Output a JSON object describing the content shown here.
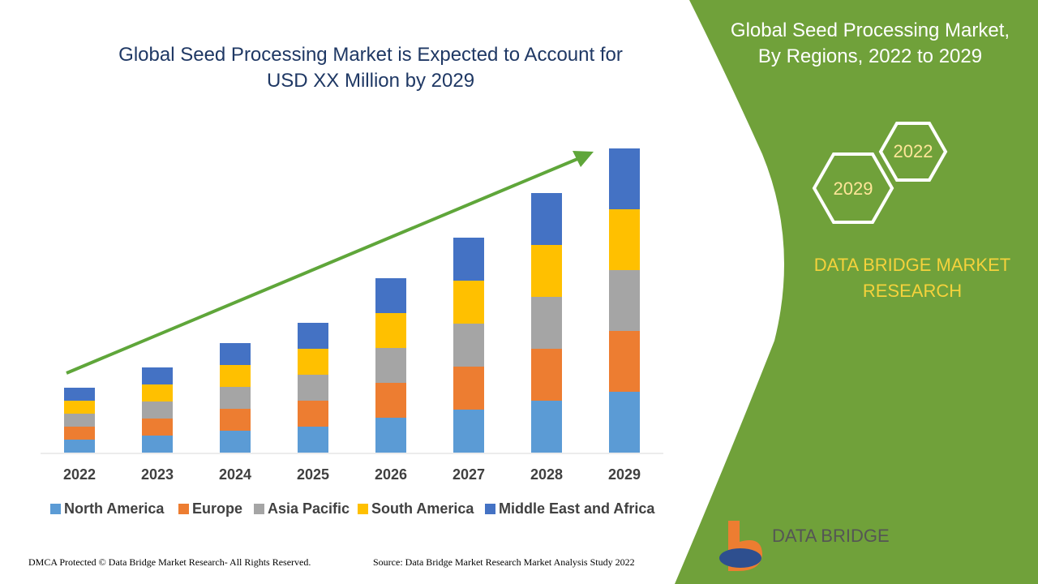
{
  "chart_data": {
    "type": "bar",
    "stacked": true,
    "title": "Global Seed Processing Market is Expected to Account for USD XX Million by 2029",
    "categories": [
      "2022",
      "2023",
      "2024",
      "2025",
      "2026",
      "2027",
      "2028",
      "2029"
    ],
    "series": [
      {
        "name": "North America",
        "color": "#5b9bd5",
        "values": [
          16,
          21,
          27,
          32,
          43,
          53,
          64,
          75
        ]
      },
      {
        "name": "Europe",
        "color": "#ed7d31",
        "values": [
          16,
          21,
          27,
          32,
          43,
          53,
          64,
          75
        ]
      },
      {
        "name": "Asia Pacific",
        "color": "#a5a5a5",
        "values": [
          16,
          21,
          27,
          32,
          43,
          53,
          64,
          75
        ]
      },
      {
        "name": "South America",
        "color": "#ffc000",
        "values": [
          16,
          21,
          27,
          32,
          43,
          53,
          64,
          75
        ]
      },
      {
        "name": "Middle East and Africa",
        "color": "#4472c4",
        "values": [
          16,
          21,
          27,
          32,
          43,
          53,
          64,
          75
        ]
      }
    ],
    "ylim": [
      0,
      400
    ],
    "legend": "bottom"
  },
  "panel": {
    "title": "Global Seed Processing Market, By Regions, 2022 to 2029",
    "hexagons": [
      "2022",
      "2029"
    ],
    "brand": "DATA BRIDGE MARKET RESEARCH"
  },
  "logo": {
    "text": "DATA BRIDGE"
  },
  "footer": {
    "copyright": "DMCA Protected © Data Bridge Market Research- All Rights Reserved.",
    "source": "Source: Data Bridge Market Research Market Analysis Study 2022"
  }
}
